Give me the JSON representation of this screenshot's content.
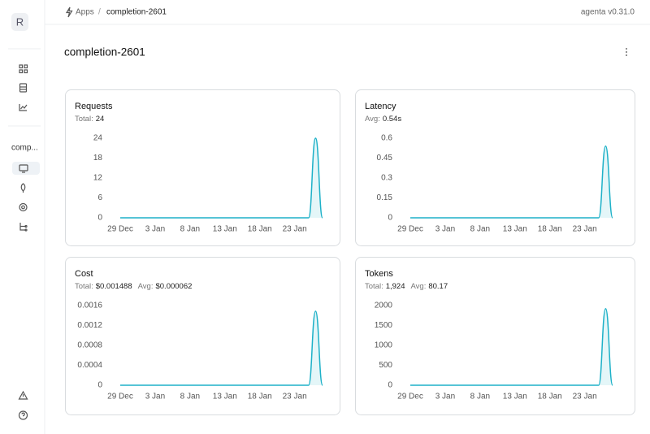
{
  "sidebar": {
    "avatar": "R",
    "app_short": "comp..."
  },
  "breadcrumb": {
    "root": "Apps",
    "separator": "/",
    "current": "completion-2601"
  },
  "version": "agenta v0.31.0",
  "page_title": "completion-2601",
  "chart_data": [
    {
      "type": "area",
      "title": "Requests",
      "stats": [
        {
          "label": "Total:",
          "value": "24"
        }
      ],
      "categories": [
        "29 Dec",
        null,
        null,
        null,
        null,
        "3 Jan",
        null,
        null,
        null,
        null,
        "8 Jan",
        null,
        null,
        null,
        null,
        "13 Jan",
        null,
        null,
        null,
        null,
        "18 Jan",
        null,
        null,
        null,
        null,
        "23 Jan",
        null,
        null,
        null,
        null
      ],
      "values": [
        0,
        0,
        0,
        0,
        0,
        0,
        0,
        0,
        0,
        0,
        0,
        0,
        0,
        0,
        0,
        0,
        0,
        0,
        0,
        0,
        0,
        0,
        0,
        0,
        0,
        0,
        0,
        0,
        24,
        0
      ],
      "color": "#1eb1c8",
      "ylim": [
        0,
        24
      ],
      "yticks": [
        0,
        6,
        12,
        18,
        24
      ]
    },
    {
      "type": "area",
      "title": "Latency",
      "stats": [
        {
          "label": "Avg:",
          "value": "0.54s"
        }
      ],
      "categories": [
        "29 Dec",
        null,
        null,
        null,
        null,
        "3 Jan",
        null,
        null,
        null,
        null,
        "8 Jan",
        null,
        null,
        null,
        null,
        "13 Jan",
        null,
        null,
        null,
        null,
        "18 Jan",
        null,
        null,
        null,
        null,
        "23 Jan",
        null,
        null,
        null,
        null
      ],
      "values": [
        0,
        0,
        0,
        0,
        0,
        0,
        0,
        0,
        0,
        0,
        0,
        0,
        0,
        0,
        0,
        0,
        0,
        0,
        0,
        0,
        0,
        0,
        0,
        0,
        0,
        0,
        0,
        0,
        0.54,
        0
      ],
      "color": "#1eb1c8",
      "ylim": [
        0,
        0.6
      ],
      "yticks": [
        0,
        0.15,
        0.3,
        0.45,
        0.6
      ]
    },
    {
      "type": "area",
      "title": "Cost",
      "stats": [
        {
          "label": "Total:",
          "value": "$0.001488"
        },
        {
          "label": "Avg:",
          "value": "$0.000062"
        }
      ],
      "categories": [
        "29 Dec",
        null,
        null,
        null,
        null,
        "3 Jan",
        null,
        null,
        null,
        null,
        "8 Jan",
        null,
        null,
        null,
        null,
        "13 Jan",
        null,
        null,
        null,
        null,
        "18 Jan",
        null,
        null,
        null,
        null,
        "23 Jan",
        null,
        null,
        null,
        null
      ],
      "values": [
        0,
        0,
        0,
        0,
        0,
        0,
        0,
        0,
        0,
        0,
        0,
        0,
        0,
        0,
        0,
        0,
        0,
        0,
        0,
        0,
        0,
        0,
        0,
        0,
        0,
        0,
        0,
        0,
        0.001488,
        0
      ],
      "color": "#1eb1c8",
      "ylim": [
        0,
        0.0016
      ],
      "yticks": [
        0,
        0.0004,
        0.0008,
        0.0012,
        0.0016
      ]
    },
    {
      "type": "area",
      "title": "Tokens",
      "stats": [
        {
          "label": "Total:",
          "value": "1,924"
        },
        {
          "label": "Avg:",
          "value": "80.17"
        }
      ],
      "categories": [
        "29 Dec",
        null,
        null,
        null,
        null,
        "3 Jan",
        null,
        null,
        null,
        null,
        "8 Jan",
        null,
        null,
        null,
        null,
        "13 Jan",
        null,
        null,
        null,
        null,
        "18 Jan",
        null,
        null,
        null,
        null,
        "23 Jan",
        null,
        null,
        null,
        null
      ],
      "values": [
        0,
        0,
        0,
        0,
        0,
        0,
        0,
        0,
        0,
        0,
        0,
        0,
        0,
        0,
        0,
        0,
        0,
        0,
        0,
        0,
        0,
        0,
        0,
        0,
        0,
        0,
        0,
        0,
        1924,
        0
      ],
      "color": "#1eb1c8",
      "ylim": [
        0,
        2000
      ],
      "yticks": [
        0,
        500,
        1000,
        1500,
        2000
      ]
    }
  ]
}
